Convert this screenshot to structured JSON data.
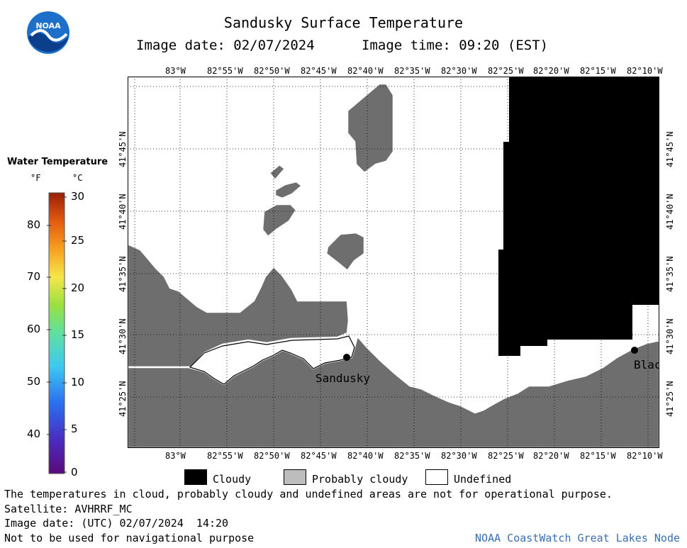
{
  "header": {
    "title": "Sandusky Surface Temperature",
    "image_date": "Image date: 02/07/2024",
    "image_time": "Image time: 09:20 (EST)"
  },
  "logo": {
    "text": "NOAA"
  },
  "map": {
    "lon_labels": [
      "83°W",
      "82°55'W",
      "82°50'W",
      "82°45'W",
      "82°40'W",
      "82°35'W",
      "82°30'W",
      "82°25'W",
      "82°20'W",
      "82°15'W",
      "82°10'W"
    ],
    "lat_labels": [
      "41°45'N",
      "41°40'N",
      "41°35'N",
      "41°30'N",
      "41°25'N"
    ],
    "places": [
      {
        "name": "Sandusky"
      },
      {
        "name": "Blac"
      }
    ],
    "colors": {
      "land": "#6e6e6e",
      "cloudy": "#000000",
      "undefined": "#ffffff",
      "shore": "#ffffff"
    }
  },
  "legend": {
    "title": "Water Temperature",
    "unit_f": "°F",
    "unit_c": "°C",
    "f_labels": [
      "80",
      "70",
      "60",
      "50",
      "40"
    ],
    "c_labels": [
      "30",
      "25",
      "20",
      "15",
      "10",
      "5",
      "0"
    ]
  },
  "key": {
    "cloudy": "Cloudy",
    "probably_cloudy": "Probably cloudy",
    "undefined": "Undefined"
  },
  "footer": {
    "disclaimer": "The temperatures in cloud, probably cloudy and undefined areas are not for operational purpose.",
    "satellite": "Satellite: AVHRRF_MC",
    "utc_date": "Image date: (UTC) 02/07/2024  14:20",
    "nav_warning": "Not to be used for navigational purpose",
    "credit": "NOAA CoastWatch Great Lakes Node"
  }
}
